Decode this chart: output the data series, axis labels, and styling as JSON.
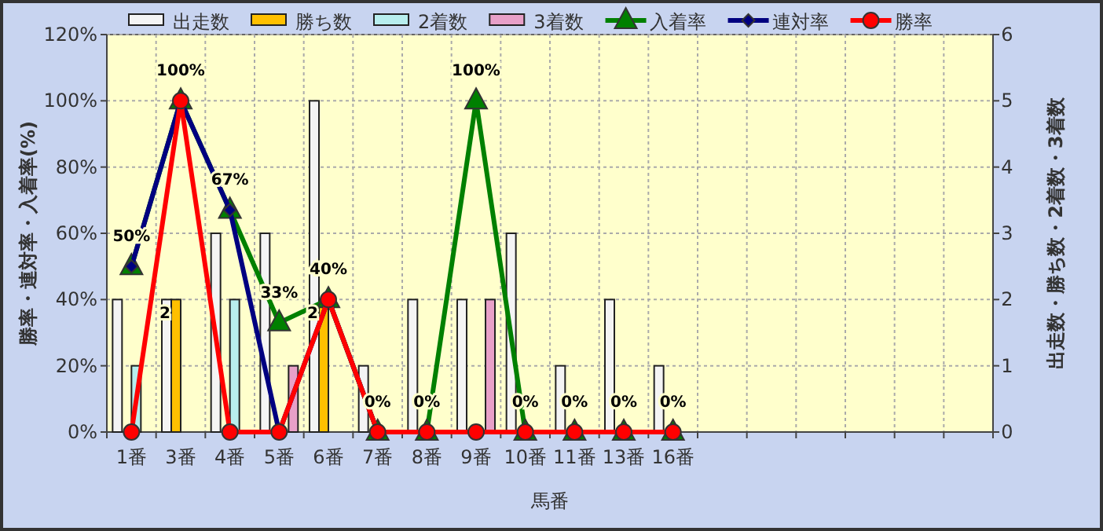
{
  "chart_data": {
    "type": "bar",
    "xlabel": "馬番",
    "ylabel": "勝率・連対率・入着率(%)",
    "y2label": "出走数・勝ち数・2着数・3着数",
    "categories": [
      "1番",
      "3番",
      "4番",
      "5番",
      "6番",
      "7番",
      "8番",
      "9番",
      "10番",
      "11番",
      "13番",
      "16番",
      null,
      null,
      null,
      null,
      null,
      null
    ],
    "series": [
      {
        "name": "出走数",
        "axis": "y2",
        "color": "#f4f4f4",
        "values": [
          2,
          2,
          3,
          3,
          5,
          1,
          2,
          2,
          3,
          1,
          2,
          1,
          null,
          null,
          null,
          null,
          null,
          null
        ]
      },
      {
        "name": "勝ち数",
        "axis": "y2",
        "color": "#ffc000",
        "values": [
          0,
          2,
          0,
          0,
          2,
          0,
          0,
          0,
          0,
          0,
          0,
          0,
          null,
          null,
          null,
          null,
          null,
          null
        ],
        "value_labels": [
          null,
          "2",
          null,
          null,
          "2",
          null,
          null,
          null,
          null,
          null,
          null,
          null,
          null,
          null,
          null,
          null,
          null,
          null
        ]
      },
      {
        "name": "2着数",
        "axis": "y2",
        "color": "#b8eeee",
        "values": [
          1,
          0,
          2,
          0,
          0,
          0,
          0,
          0,
          0,
          0,
          0,
          0,
          null,
          null,
          null,
          null,
          null,
          null
        ]
      },
      {
        "name": "3着数",
        "axis": "y2",
        "color": "#e8a0c8",
        "values": [
          0,
          0,
          0,
          1,
          0,
          0,
          0,
          2,
          0,
          0,
          0,
          0,
          null,
          null,
          null,
          null,
          null,
          null
        ]
      },
      {
        "name": "入着率",
        "type": "line",
        "axis": "y",
        "color": "#008000",
        "marker": "triangle",
        "values": [
          50,
          100,
          67,
          33,
          40,
          0,
          0,
          100,
          0,
          0,
          0,
          0,
          null,
          null,
          null,
          null,
          null,
          null
        ],
        "value_labels": [
          "50%",
          "100%",
          "67%",
          "33%",
          "40%",
          "0%",
          "0%",
          "100%",
          "0%",
          "0%",
          "0%",
          "0%",
          null,
          null,
          null,
          null,
          null,
          null
        ]
      },
      {
        "name": "連対率",
        "type": "line",
        "axis": "y",
        "color": "#000080",
        "marker": "diamond",
        "values": [
          50,
          100,
          67,
          0,
          40,
          0,
          0,
          0,
          0,
          0,
          0,
          0,
          null,
          null,
          null,
          null,
          null,
          null
        ]
      },
      {
        "name": "勝率",
        "type": "line",
        "axis": "y",
        "color": "#ff0000",
        "marker": "circle",
        "values": [
          0,
          100,
          0,
          0,
          40,
          0,
          0,
          0,
          0,
          0,
          0,
          0,
          null,
          null,
          null,
          null,
          null,
          null
        ]
      }
    ],
    "ylim": [
      0,
      120
    ],
    "yticks": [
      {
        "value": 0,
        "label": "0%"
      },
      {
        "value": 20,
        "label": "20%"
      },
      {
        "value": 40,
        "label": "40%"
      },
      {
        "value": 60,
        "label": "60%"
      },
      {
        "value": 80,
        "label": "80%"
      },
      {
        "value": 100,
        "label": "100%"
      },
      {
        "value": 120,
        "label": "120%"
      }
    ],
    "y2lim": [
      0,
      6
    ],
    "y2ticks": [
      0,
      1,
      2,
      3,
      4,
      5,
      6
    ],
    "grid": true,
    "legend": "top",
    "line_style": "solid"
  }
}
